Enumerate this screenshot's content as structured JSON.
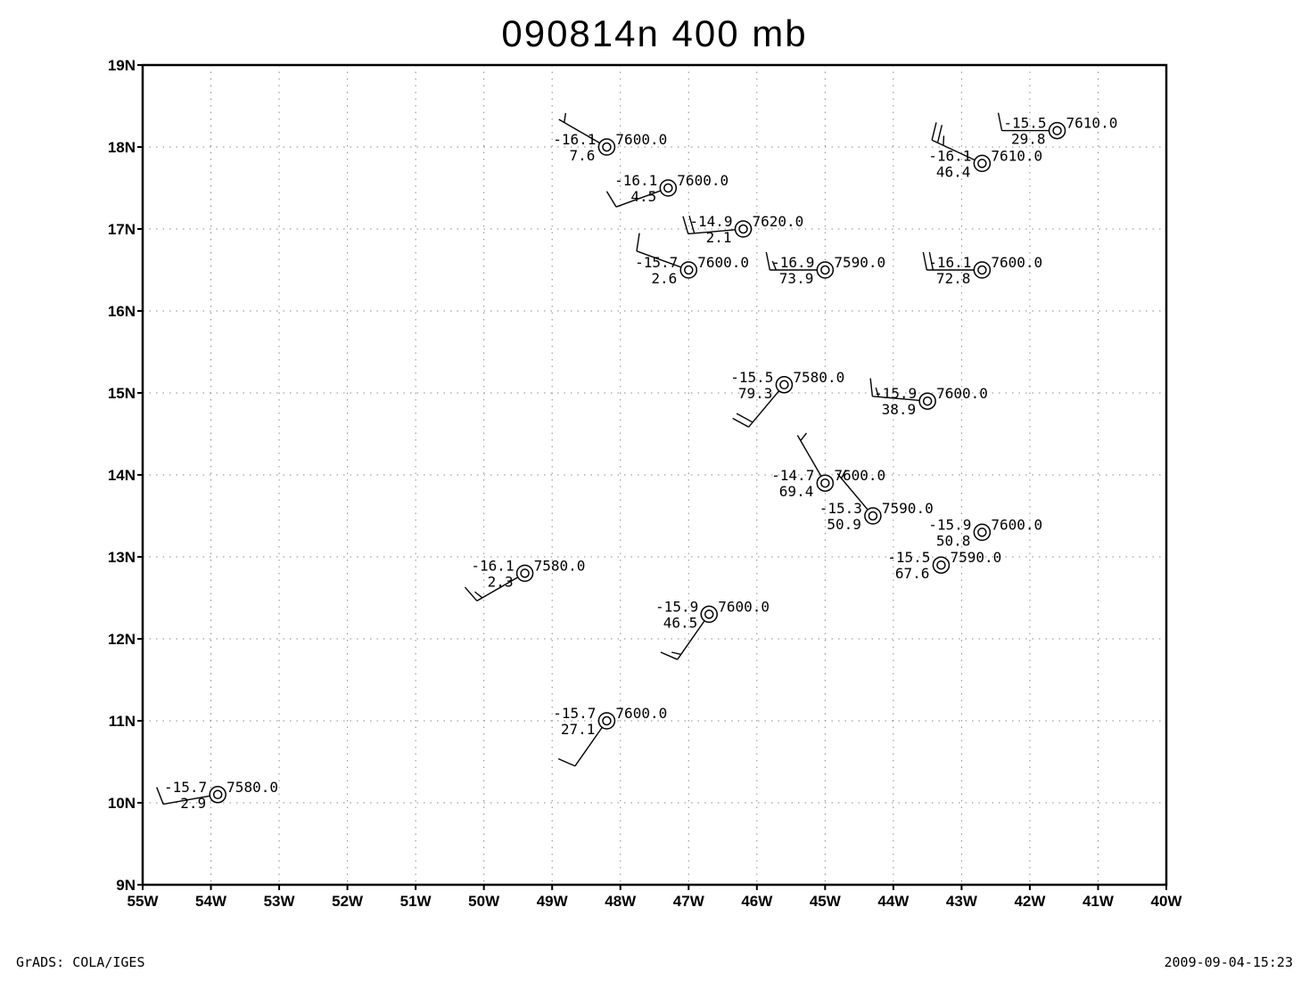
{
  "title": "090814n 400 mb",
  "footer": {
    "left": "GrADS: COLA/IGES",
    "right": "2009-09-04-15:23"
  },
  "chart_data": {
    "type": "scatter",
    "map": "station plot with wind barbs",
    "x_range": [
      -55,
      -40
    ],
    "y_range": [
      9,
      19
    ],
    "x_ticks": [
      {
        "v": -55,
        "label": "55W"
      },
      {
        "v": -54,
        "label": "54W"
      },
      {
        "v": -53,
        "label": "53W"
      },
      {
        "v": -52,
        "label": "52W"
      },
      {
        "v": -51,
        "label": "51W"
      },
      {
        "v": -50,
        "label": "50W"
      },
      {
        "v": -49,
        "label": "49W"
      },
      {
        "v": -48,
        "label": "48W"
      },
      {
        "v": -47,
        "label": "47W"
      },
      {
        "v": -46,
        "label": "46W"
      },
      {
        "v": -45,
        "label": "45W"
      },
      {
        "v": -44,
        "label": "44W"
      },
      {
        "v": -43,
        "label": "43W"
      },
      {
        "v": -42,
        "label": "42W"
      },
      {
        "v": -41,
        "label": "41W"
      },
      {
        "v": -40,
        "label": "40W"
      }
    ],
    "y_ticks": [
      {
        "v": 9,
        "label": "9N"
      },
      {
        "v": 10,
        "label": "10N"
      },
      {
        "v": 11,
        "label": "11N"
      },
      {
        "v": 12,
        "label": "12N"
      },
      {
        "v": 13,
        "label": "13N"
      },
      {
        "v": 14,
        "label": "14N"
      },
      {
        "v": 15,
        "label": "15N"
      },
      {
        "v": 16,
        "label": "16N"
      },
      {
        "v": 17,
        "label": "17N"
      },
      {
        "v": 18,
        "label": "18N"
      },
      {
        "v": 19,
        "label": "19N"
      }
    ],
    "grid": true,
    "stations": [
      {
        "lon": -48.2,
        "lat": 18.0,
        "temp": "-16.1",
        "value": "7.6",
        "height": "7600.0",
        "wind_dir": 300,
        "wind_speed": 5
      },
      {
        "lon": -47.3,
        "lat": 17.5,
        "temp": "-16.1",
        "value": "4.5",
        "height": "7600.0",
        "wind_dir": 250,
        "wind_speed": 10
      },
      {
        "lon": -46.2,
        "lat": 17.0,
        "temp": "-14.9",
        "value": "2.1",
        "height": "7620.0",
        "wind_dir": 265,
        "wind_speed": 20
      },
      {
        "lon": -47.0,
        "lat": 16.5,
        "temp": "-15.7",
        "value": "2.6",
        "height": "7600.0",
        "wind_dir": 290,
        "wind_speed": 10
      },
      {
        "lon": -45.0,
        "lat": 16.5,
        "temp": "-16.9",
        "value": "73.9",
        "height": "7590.0",
        "wind_dir": 270,
        "wind_speed": 15
      },
      {
        "lon": -42.7,
        "lat": 16.5,
        "temp": "-16.1",
        "value": "72.8",
        "height": "7600.0",
        "wind_dir": 270,
        "wind_speed": 20
      },
      {
        "lon": -41.6,
        "lat": 18.2,
        "temp": "-15.5",
        "value": "29.8",
        "height": "7610.0",
        "wind_dir": 270,
        "wind_speed": 10
      },
      {
        "lon": -42.7,
        "lat": 17.8,
        "temp": "-16.1",
        "value": "46.4",
        "height": "7610.0",
        "wind_dir": 295,
        "wind_speed": 25
      },
      {
        "lon": -45.6,
        "lat": 15.1,
        "temp": "-15.5",
        "value": "79.3",
        "height": "7580.0",
        "wind_dir": 220,
        "wind_speed": 20
      },
      {
        "lon": -43.5,
        "lat": 14.9,
        "temp": "-15.9",
        "value": "38.9",
        "height": "7600.0",
        "wind_dir": 275,
        "wind_speed": 15
      },
      {
        "lon": -45.0,
        "lat": 13.9,
        "temp": "-14.7",
        "value": "69.4",
        "height": "7600.0",
        "wind_dir": 330,
        "wind_speed": 5
      },
      {
        "lon": -44.3,
        "lat": 13.5,
        "temp": "-15.3",
        "value": "50.9",
        "height": "7590.0",
        "wind_dir": 320,
        "wind_speed": 5
      },
      {
        "lon": -42.7,
        "lat": 13.3,
        "temp": "-15.9",
        "value": "50.8",
        "height": "7600.0",
        "wind_dir": null,
        "wind_speed": 0
      },
      {
        "lon": -43.3,
        "lat": 12.9,
        "temp": "-15.5",
        "value": "67.6",
        "height": "7590.0",
        "wind_dir": null,
        "wind_speed": 0
      },
      {
        "lon": -49.4,
        "lat": 12.8,
        "temp": "-16.1",
        "value": "2.3",
        "height": "7580.0",
        "wind_dir": 240,
        "wind_speed": 15
      },
      {
        "lon": -46.7,
        "lat": 12.3,
        "temp": "-15.9",
        "value": "46.5",
        "height": "7600.0",
        "wind_dir": 215,
        "wind_speed": 15
      },
      {
        "lon": -48.2,
        "lat": 11.0,
        "temp": "-15.7",
        "value": "27.1",
        "height": "7600.0",
        "wind_dir": 215,
        "wind_speed": 10
      },
      {
        "lon": -53.9,
        "lat": 10.1,
        "temp": "-15.7",
        "value": "2.9",
        "height": "7580.0",
        "wind_dir": 260,
        "wind_speed": 10
      }
    ]
  }
}
